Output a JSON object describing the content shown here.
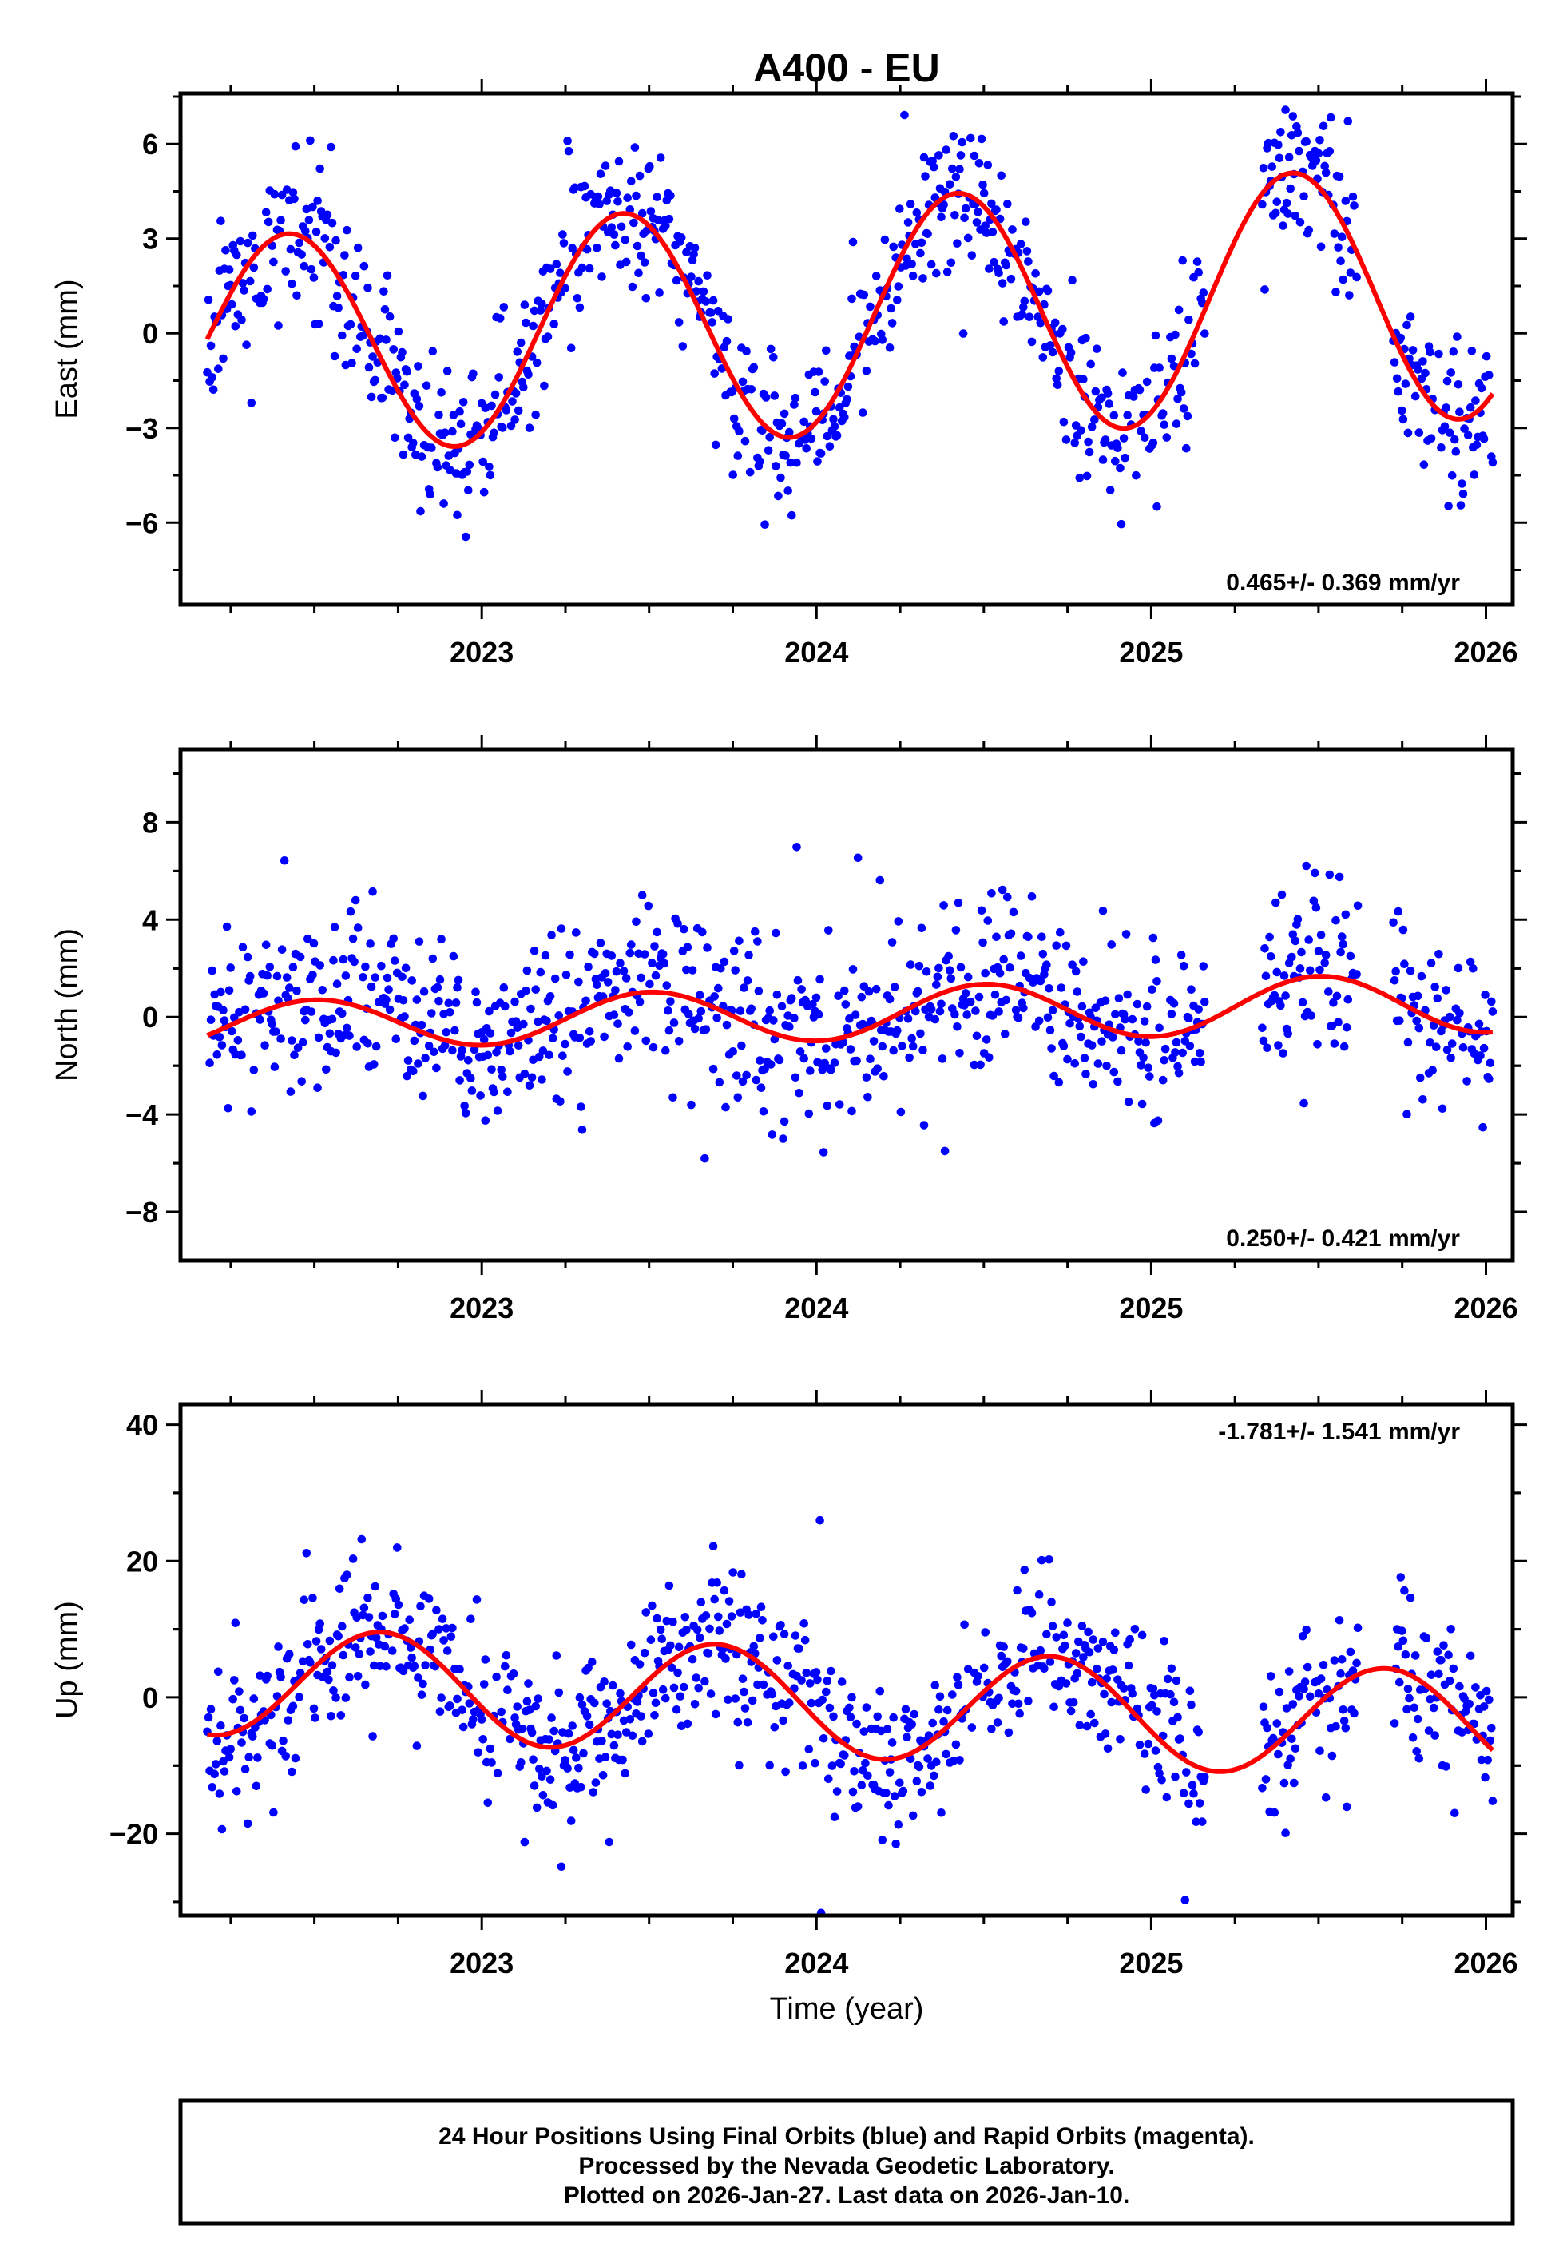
{
  "title": "A400 - EU",
  "xlabel": "Time (year)",
  "footer": {
    "line1": "24 Hour Positions Using Final Orbits (blue) and Rapid Orbits (magenta).",
    "line2": "Processed by the Nevada Geodetic Laboratory.",
    "line3": "Plotted on 2026-Jan-27. Last data on 2026-Jan-10."
  },
  "colors": {
    "points": "#0000ff",
    "fit": "#ff0000",
    "axis": "#000000"
  },
  "chart_data": [
    {
      "type": "scatter",
      "name": "east",
      "ylabel": "East (mm)",
      "rate_text": "0.465+/- 0.369 mm/yr",
      "rate_position": "bottom-right",
      "xlim": [
        2022.1,
        2026.08
      ],
      "ylim": [
        -8.6,
        7.6
      ],
      "xticks": [
        2023,
        2024,
        2025,
        2026
      ],
      "xtick_labels": [
        "2023",
        "2024",
        "2025",
        "2026"
      ],
      "yticks": [
        -6,
        -3,
        0,
        3,
        6
      ],
      "ytick_labels": [
        "−6",
        "−3",
        "0",
        "3",
        "6"
      ],
      "fit": {
        "x_start": 2022.18,
        "x_end": 2026.02,
        "amp": 3.4,
        "peak_year": 2022.42,
        "period": 1.0,
        "offset": -0.4,
        "rate": 0.465,
        "growth": 0.2
      },
      "scatter": {
        "n": 1050,
        "noise": 1.2,
        "seed": 11,
        "gaps": [
          [
            2025.16,
            2025.33
          ],
          [
            2025.62,
            2025.72
          ]
        ]
      }
    },
    {
      "type": "scatter",
      "name": "north",
      "ylabel": "North (mm)",
      "rate_text": "0.250+/- 0.421 mm/yr",
      "rate_position": "bottom-right",
      "xlim": [
        2022.1,
        2026.08
      ],
      "ylim": [
        -10,
        11
      ],
      "xticks": [
        2023,
        2024,
        2025,
        2026
      ],
      "xtick_labels": [
        "2023",
        "2024",
        "2025",
        "2026"
      ],
      "yticks": [
        -8,
        -4,
        0,
        4,
        8
      ],
      "ytick_labels": [
        "−8",
        "−4",
        "0",
        "4",
        "8"
      ],
      "fit": {
        "x_start": 2022.18,
        "x_end": 2026.02,
        "amp": 0.95,
        "peak_year": 2022.5,
        "period": 1.0,
        "offset": -0.35,
        "rate": 0.25,
        "growth": 0.3
      },
      "scatter": {
        "n": 1050,
        "noise": 1.7,
        "seed": 23,
        "gaps": [
          [
            2025.16,
            2025.33
          ],
          [
            2025.62,
            2025.72
          ]
        ]
      }
    },
    {
      "type": "scatter",
      "name": "up",
      "ylabel": "Up (mm)",
      "rate_text": "-1.781+/- 1.541 mm/yr",
      "rate_position": "top-right",
      "xlim": [
        2022.1,
        2026.08
      ],
      "ylim": [
        -32,
        43
      ],
      "xticks": [
        2023,
        2024,
        2025,
        2026
      ],
      "xtick_labels": [
        "2023",
        "2024",
        "2025",
        "2026"
      ],
      "yticks": [
        -20,
        0,
        20,
        40
      ],
      "ytick_labels": [
        "−20",
        "0",
        "20",
        "40"
      ],
      "fit": {
        "x_start": 2022.18,
        "x_end": 2026.02,
        "amp": 8.0,
        "peak_year": 2022.7,
        "period": 1.0,
        "offset": 2.5,
        "rate": -1.781,
        "growth": 0.0
      },
      "scatter": {
        "n": 1050,
        "noise": 5.5,
        "seed": 37,
        "gaps": [
          [
            2025.16,
            2025.33
          ],
          [
            2025.62,
            2025.72
          ]
        ]
      }
    }
  ]
}
